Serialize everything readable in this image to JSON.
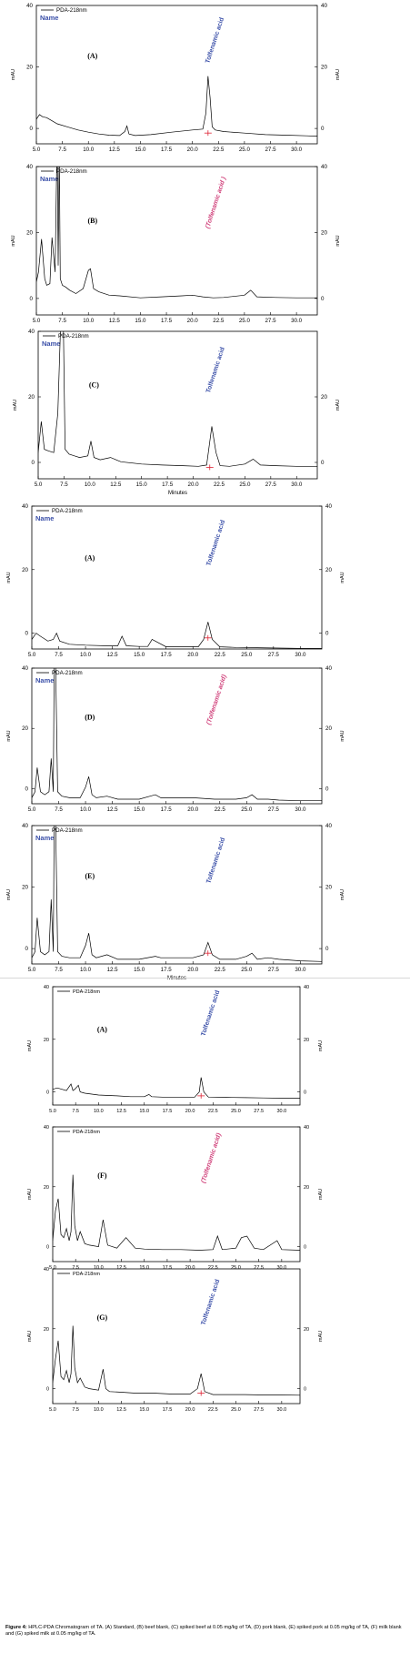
{
  "chart_data": [
    {
      "type": "line",
      "panel_label": "(A)",
      "legend": "PDA-218nm",
      "series_name": "Name",
      "ylabel": "mAU",
      "xlabel": "",
      "xlim": [
        5.0,
        32.0
      ],
      "ylim": [
        -5,
        40
      ],
      "x_ticks": [
        "5.0",
        "7.5",
        "10.0",
        "12.5",
        "15.0",
        "17.5",
        "20.0",
        "22.5",
        "25.0",
        "27.5",
        "30.0"
      ],
      "y_ticks_left": [
        "40",
        "20",
        "0"
      ],
      "y_ticks_right": [
        "40",
        "20",
        "0"
      ],
      "peak_label": "Tolfenamic acid",
      "peak_label_color": "#3a4fa8",
      "peak_label_style": "normal",
      "marker_at": 21.5,
      "x": [
        5.0,
        5.3,
        5.6,
        6.0,
        6.5,
        7.0,
        8.0,
        9.0,
        10.0,
        11.0,
        12.0,
        13.0,
        13.5,
        13.7,
        13.9,
        14.5,
        16.0,
        18.0,
        20.0,
        21.0,
        21.3,
        21.5,
        21.7,
        21.9,
        22.2,
        23.0,
        25.0,
        27.0,
        29.0,
        31.0,
        32.0
      ],
      "y": [
        3.0,
        4.5,
        3.8,
        3.5,
        2.5,
        1.5,
        0.5,
        -0.5,
        -1.2,
        -1.8,
        -2.2,
        -2.3,
        -1.0,
        0.8,
        -1.8,
        -2.3,
        -2.0,
        -1.2,
        -0.5,
        -0.2,
        5.0,
        17.0,
        10.0,
        0.5,
        -0.5,
        -1.0,
        -1.5,
        -2.0,
        -2.2,
        -2.4,
        -2.5
      ]
    },
    {
      "type": "line",
      "panel_label": "(B)",
      "legend": "PDA-218nm",
      "series_name": "Name",
      "ylabel": "mAU",
      "xlabel": "",
      "xlim": [
        5.0,
        32.0
      ],
      "ylim": [
        -5,
        40
      ],
      "x_ticks": [
        "5.0",
        "7.5",
        "10.0",
        "12.5",
        "15.0",
        "17.5",
        "20.0",
        "22.5",
        "25.0",
        "27.5",
        "30.0"
      ],
      "y_ticks_left": [
        "40",
        "20",
        "0"
      ],
      "y_ticks_right": [
        "40",
        "20",
        "0"
      ],
      "peak_label": "(Tolfenamic acid )",
      "peak_label_color": "#d0407a",
      "peak_label_style": "italic",
      "marker_at": null,
      "x": [
        5.0,
        5.2,
        5.5,
        5.8,
        6.0,
        6.3,
        6.5,
        6.8,
        7.0,
        7.1,
        7.2,
        7.3,
        7.5,
        7.8,
        8.2,
        8.8,
        9.5,
        10.0,
        10.2,
        10.5,
        11.0,
        12.0,
        13.0,
        15.0,
        17.0,
        19.0,
        20.0,
        21.0,
        22.0,
        23.0,
        25.0,
        25.6,
        26.2,
        28.0,
        30.0,
        32.0
      ],
      "y": [
        5.0,
        8.0,
        18.0,
        6.0,
        4.0,
        4.5,
        18.5,
        8.0,
        50.0,
        10.0,
        45.0,
        6.0,
        4.0,
        3.5,
        2.5,
        1.5,
        3.0,
        8.5,
        9.0,
        3.0,
        2.0,
        1.0,
        0.8,
        0.2,
        0.5,
        0.8,
        1.0,
        0.5,
        0.2,
        0.3,
        1.0,
        2.5,
        0.5,
        0.3,
        0.2,
        0.2
      ]
    },
    {
      "type": "line",
      "panel_label": "(C)",
      "legend": "PDA-218nm",
      "series_name": "Name",
      "ylabel": "mAU",
      "xlabel": "Minutes",
      "xlim": [
        5.0,
        32.0
      ],
      "ylim": [
        -5,
        40
      ],
      "x_ticks": [
        "5.0",
        "7.5",
        "10.0",
        "12.5",
        "15.0",
        "17.5",
        "20.0",
        "22.5",
        "25.0",
        "27.5",
        "30.0"
      ],
      "y_ticks_left": [
        "40",
        "20",
        "0"
      ],
      "y_ticks_right": [
        "20",
        "0"
      ],
      "peak_label": "Tolfenamic acid",
      "peak_label_color": "#3a4fa8",
      "peak_label_style": "normal",
      "marker_at": 21.6,
      "x": [
        5.0,
        5.3,
        5.6,
        6.0,
        6.5,
        6.9,
        7.2,
        7.4,
        7.6,
        8.0,
        8.5,
        9.0,
        9.8,
        10.1,
        10.4,
        11.0,
        12.0,
        13.0,
        15.0,
        17.0,
        19.0,
        20.5,
        21.3,
        21.8,
        22.2,
        22.6,
        23.5,
        25.0,
        25.8,
        26.5,
        28.0,
        30.0,
        32.0
      ],
      "y": [
        3.0,
        12.5,
        4.0,
        3.5,
        3.0,
        15.0,
        45.0,
        50.0,
        4.0,
        2.5,
        2.0,
        1.5,
        2.0,
        6.5,
        1.5,
        0.8,
        1.5,
        0.2,
        -0.5,
        -0.8,
        -1.0,
        -1.2,
        -0.8,
        11.0,
        3.0,
        -1.0,
        -1.2,
        -0.5,
        1.0,
        -0.8,
        -1.0,
        -1.2,
        -1.2
      ]
    },
    {
      "type": "line",
      "panel_label": "(A)",
      "legend": "PDA-218nm",
      "series_name": "Name",
      "ylabel": "mAU",
      "xlabel": "",
      "xlim": [
        5.0,
        32.0
      ],
      "ylim": [
        -5,
        40
      ],
      "x_ticks": [
        "5.0",
        "7.5",
        "10.0",
        "12.5",
        "15.0",
        "17.5",
        "20.0",
        "22.5",
        "25.0",
        "27.5",
        "30.0"
      ],
      "y_ticks_left": [
        "40",
        "20",
        "0"
      ],
      "y_ticks_right": [
        "40",
        "20",
        "0"
      ],
      "peak_label": "Tolfenamic acid",
      "peak_label_color": "#3a4fa8",
      "peak_label_style": "normal",
      "marker_at": 21.4,
      "x": [
        5.0,
        5.4,
        5.8,
        6.5,
        7.0,
        7.3,
        7.6,
        8.5,
        10.0,
        12.0,
        13.0,
        13.4,
        13.8,
        15.0,
        15.8,
        16.2,
        17.5,
        19.0,
        20.5,
        21.0,
        21.4,
        21.8,
        22.5,
        24.0,
        26.0,
        28.0,
        30.0,
        32.0
      ],
      "y": [
        -2.0,
        0.0,
        -1.0,
        -2.5,
        -2.0,
        0.0,
        -2.5,
        -3.5,
        -3.8,
        -4.0,
        -4.0,
        -1.0,
        -4.0,
        -4.2,
        -4.2,
        -2.0,
        -4.3,
        -4.3,
        -4.3,
        -2.0,
        3.5,
        -2.0,
        -4.3,
        -4.5,
        -4.6,
        -4.7,
        -4.8,
        -4.8
      ]
    },
    {
      "type": "line",
      "panel_label": "(D)",
      "legend": "PDA-218nm",
      "series_name": "Name",
      "ylabel": "mAU",
      "xlabel": "",
      "xlim": [
        5.0,
        32.0
      ],
      "ylim": [
        -5,
        40
      ],
      "x_ticks": [
        "5.0",
        "7.5",
        "10.0",
        "12.5",
        "15.0",
        "17.5",
        "20.0",
        "22.5",
        "25.0",
        "27.5",
        "30.0"
      ],
      "y_ticks_left": [
        "40",
        "20",
        "0"
      ],
      "y_ticks_right": [
        "40",
        "20",
        "0"
      ],
      "peak_label": "(Tolfenamic acid)",
      "peak_label_color": "#d0407a",
      "peak_label_style": "italic",
      "marker_at": null,
      "x": [
        5.0,
        5.3,
        5.5,
        5.8,
        6.2,
        6.6,
        6.8,
        7.0,
        7.1,
        7.2,
        7.4,
        7.8,
        8.5,
        9.5,
        10.0,
        10.3,
        10.6,
        11.0,
        12.0,
        13.0,
        15.0,
        16.5,
        17.0,
        18.0,
        20.0,
        22.0,
        24.0,
        25.0,
        25.5,
        26.0,
        27.0,
        28.0,
        30.0,
        32.0
      ],
      "y": [
        -3.0,
        -1.0,
        7.0,
        -1.0,
        -2.0,
        -1.0,
        10.0,
        -1.0,
        50.0,
        45.0,
        -1.0,
        -2.5,
        -3.0,
        -3.0,
        0.5,
        4.0,
        -2.0,
        -3.0,
        -2.5,
        -3.5,
        -3.5,
        -2.0,
        -3.0,
        -3.0,
        -3.0,
        -3.5,
        -3.5,
        -3.0,
        -2.0,
        -3.5,
        -3.5,
        -3.8,
        -4.0,
        -4.0
      ]
    },
    {
      "type": "line",
      "panel_label": "(E)",
      "legend": "PDA-218nm",
      "series_name": "Name",
      "ylabel": "mAU",
      "xlabel": "Minutes",
      "xlim": [
        5.0,
        32.0
      ],
      "ylim": [
        -5,
        40
      ],
      "x_ticks": [
        "5.0",
        "7.5",
        "10.0",
        "12.5",
        "15.0",
        "17.5",
        "20.0",
        "22.5",
        "25.0",
        "27.5",
        "30.0"
      ],
      "y_ticks_left": [
        "40",
        "20",
        "0"
      ],
      "y_ticks_right": [
        "40",
        "20",
        "0"
      ],
      "peak_label": "Tolfenamic acid",
      "peak_label_color": "#3a4fa8",
      "peak_label_style": "normal",
      "marker_at": 21.4,
      "x": [
        5.0,
        5.3,
        5.5,
        5.8,
        6.2,
        6.6,
        6.8,
        7.0,
        7.1,
        7.2,
        7.4,
        7.8,
        8.5,
        9.5,
        10.0,
        10.3,
        10.6,
        11.0,
        12.0,
        13.0,
        15.0,
        16.5,
        17.0,
        18.0,
        20.0,
        21.0,
        21.4,
        21.8,
        22.5,
        24.0,
        25.0,
        25.5,
        26.0,
        27.0,
        28.0,
        30.0,
        32.0
      ],
      "y": [
        -3.0,
        -1.0,
        10.0,
        -1.0,
        -2.0,
        -1.0,
        16.0,
        -1.0,
        50.0,
        45.0,
        -1.0,
        -2.5,
        -3.0,
        -3.0,
        1.0,
        5.0,
        -2.0,
        -3.0,
        -2.0,
        -3.5,
        -3.5,
        -2.5,
        -3.0,
        -3.0,
        -3.0,
        -2.0,
        2.0,
        -2.0,
        -3.5,
        -3.5,
        -2.5,
        -1.5,
        -3.5,
        -3.0,
        -3.5,
        -4.0,
        -4.2
      ]
    },
    {
      "type": "line",
      "panel_label": "(A)",
      "legend": "PDA-218nm",
      "series_name": "",
      "ylabel": "mAU",
      "xlabel": "",
      "xlim": [
        5.0,
        32.0
      ],
      "ylim": [
        -5,
        40
      ],
      "x_ticks": [
        "5.0",
        "7.5",
        "10.0",
        "12.5",
        "15.0",
        "17.5",
        "20.0",
        "22.5",
        "25.0",
        "27.5",
        "30.0"
      ],
      "y_ticks_left": [
        "40",
        "20",
        "0"
      ],
      "y_ticks_right": [
        "40",
        "20",
        "0"
      ],
      "peak_label": "Tolfenamic acid",
      "peak_label_color": "#3a4fa8",
      "peak_label_style": "normal",
      "marker_at": 21.2,
      "x": [
        5.0,
        5.5,
        6.0,
        6.5,
        7.0,
        7.2,
        7.4,
        7.8,
        8.0,
        8.5,
        10.0,
        12.0,
        13.5,
        15.0,
        15.5,
        15.8,
        17.0,
        19.0,
        20.5,
        21.0,
        21.2,
        21.5,
        22.0,
        24.0,
        26.0,
        28.0,
        30.0,
        32.0
      ],
      "y": [
        1.0,
        1.5,
        1.0,
        0.5,
        3.0,
        0.5,
        1.0,
        2.5,
        0.0,
        -0.5,
        -1.2,
        -1.5,
        -1.8,
        -1.8,
        -1.0,
        -1.8,
        -2.0,
        -2.0,
        -2.0,
        0.0,
        5.5,
        0.0,
        -2.0,
        -2.1,
        -2.2,
        -2.3,
        -2.4,
        -2.4
      ]
    },
    {
      "type": "line",
      "panel_label": "(F)",
      "legend": "PDA-218nm",
      "series_name": "",
      "ylabel": "mAU",
      "xlabel": "",
      "xlim": [
        5.0,
        32.0
      ],
      "ylim": [
        -5,
        40
      ],
      "x_ticks": [
        "5.0",
        "7.5",
        "10.0",
        "12.5",
        "15.0",
        "17.5",
        "20.0",
        "22.5",
        "25.0",
        "27.5",
        "30.0"
      ],
      "y_ticks_left": [
        "40",
        "20",
        "0"
      ],
      "y_ticks_right": [
        "40",
        "20",
        "0"
      ],
      "peak_label": "(Tolfenamic acid)",
      "peak_label_color": "#d0407a",
      "peak_label_style": "italic",
      "marker_at": null,
      "x": [
        5.0,
        5.3,
        5.6,
        5.9,
        6.2,
        6.5,
        6.8,
        7.0,
        7.2,
        7.4,
        7.7,
        8.0,
        8.5,
        9.0,
        10.0,
        10.5,
        11.0,
        12.0,
        13.0,
        14.0,
        15.0,
        17.0,
        19.0,
        21.0,
        22.5,
        23.0,
        23.5,
        25.0,
        25.6,
        26.2,
        27.0,
        28.0,
        29.5,
        30.0,
        32.0
      ],
      "y": [
        2.0,
        12.0,
        16.0,
        4.0,
        3.0,
        6.0,
        2.0,
        5.0,
        24.0,
        7.0,
        2.0,
        5.0,
        1.0,
        0.5,
        0.0,
        9.0,
        0.5,
        -0.5,
        3.0,
        -0.5,
        -0.8,
        -1.0,
        -1.0,
        -1.2,
        -1.0,
        3.5,
        -1.0,
        -0.5,
        3.0,
        3.5,
        -0.5,
        -1.0,
        2.0,
        -1.0,
        -1.2
      ]
    },
    {
      "type": "line",
      "panel_label": "(G)",
      "legend": "PDA-218nm",
      "series_name": "",
      "ylabel": "mAU",
      "xlabel": "",
      "xlim": [
        5.0,
        32.0
      ],
      "ylim": [
        -5,
        40
      ],
      "x_ticks": [
        "5.0",
        "7.5",
        "10.0",
        "12.5",
        "15.0",
        "17.5",
        "20.0",
        "22.5",
        "25.0",
        "27.5",
        "30.0"
      ],
      "y_ticks_left": [
        "40",
        "20",
        "0"
      ],
      "y_ticks_right": [
        "20",
        "0"
      ],
      "peak_label": "Tolfenamic acid",
      "peak_label_color": "#3a4fa8",
      "peak_label_style": "normal",
      "marker_at": 21.2,
      "x": [
        5.0,
        5.3,
        5.6,
        5.9,
        6.2,
        6.5,
        6.8,
        7.0,
        7.2,
        7.4,
        7.7,
        8.0,
        8.5,
        9.0,
        10.0,
        10.5,
        10.8,
        11.2,
        12.5,
        14.0,
        16.0,
        18.0,
        20.0,
        20.8,
        21.2,
        21.6,
        22.5,
        24.0,
        26.0,
        28.0,
        30.0,
        32.0
      ],
      "y": [
        2.0,
        10.0,
        16.0,
        4.0,
        3.0,
        6.0,
        2.0,
        5.0,
        21.0,
        7.0,
        2.0,
        3.5,
        0.5,
        0.0,
        -0.5,
        6.5,
        0.0,
        -1.0,
        -1.2,
        -1.5,
        -1.5,
        -1.8,
        -1.8,
        0.0,
        5.0,
        -1.0,
        -2.0,
        -2.0,
        -2.0,
        -2.1,
        -2.1,
        -2.2
      ]
    }
  ],
  "figure_caption": {
    "label": "Figure 4:",
    "text": "HPLC-PDA Chromatogram of TA. (A) Standard, (B) beef blank, (C) spiked beef at 0.05 mg/kg of TA, (D) pork blank, (E) spiked pork at 0.05 mg/kg of TA, (F) milk blank and (G) spiked milk at 0.05 mg/kg of TA."
  }
}
